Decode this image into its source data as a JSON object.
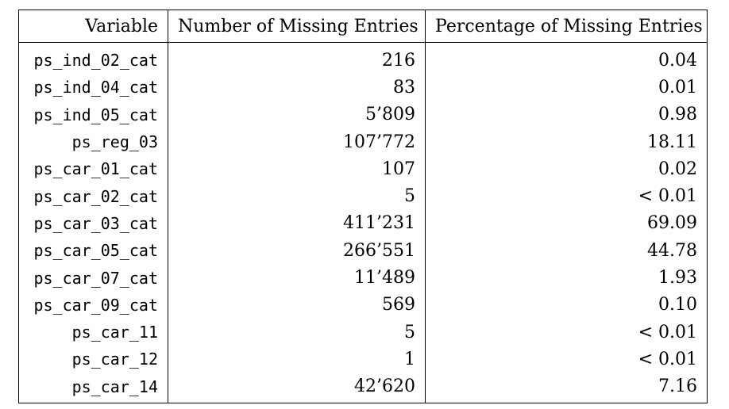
{
  "table": {
    "headers": [
      "Variable",
      "Number of Missing Entries",
      "Percentage of Missing Entries"
    ],
    "rows": [
      {
        "variable": "ps_ind_02_cat",
        "missing_count": "216",
        "missing_pct": "0.04"
      },
      {
        "variable": "ps_ind_04_cat",
        "missing_count": "83",
        "missing_pct": "0.01"
      },
      {
        "variable": "ps_ind_05_cat",
        "missing_count": "5’809",
        "missing_pct": "0.98"
      },
      {
        "variable": "ps_reg_03",
        "missing_count": "107’772",
        "missing_pct": "18.11"
      },
      {
        "variable": "ps_car_01_cat",
        "missing_count": "107",
        "missing_pct": "0.02"
      },
      {
        "variable": "ps_car_02_cat",
        "missing_count": "5",
        "missing_pct": "< 0.01"
      },
      {
        "variable": "ps_car_03_cat",
        "missing_count": "411’231",
        "missing_pct": "69.09"
      },
      {
        "variable": "ps_car_05_cat",
        "missing_count": "266’551",
        "missing_pct": "44.78"
      },
      {
        "variable": "ps_car_07_cat",
        "missing_count": "11’489",
        "missing_pct": "1.93"
      },
      {
        "variable": "ps_car_09_cat",
        "missing_count": "569",
        "missing_pct": "0.10"
      },
      {
        "variable": "ps_car_11",
        "missing_count": "5",
        "missing_pct": "< 0.01"
      },
      {
        "variable": "ps_car_12",
        "missing_count": "1",
        "missing_pct": "< 0.01"
      },
      {
        "variable": "ps_car_14",
        "missing_count": "42’620",
        "missing_pct": "7.16"
      }
    ]
  }
}
